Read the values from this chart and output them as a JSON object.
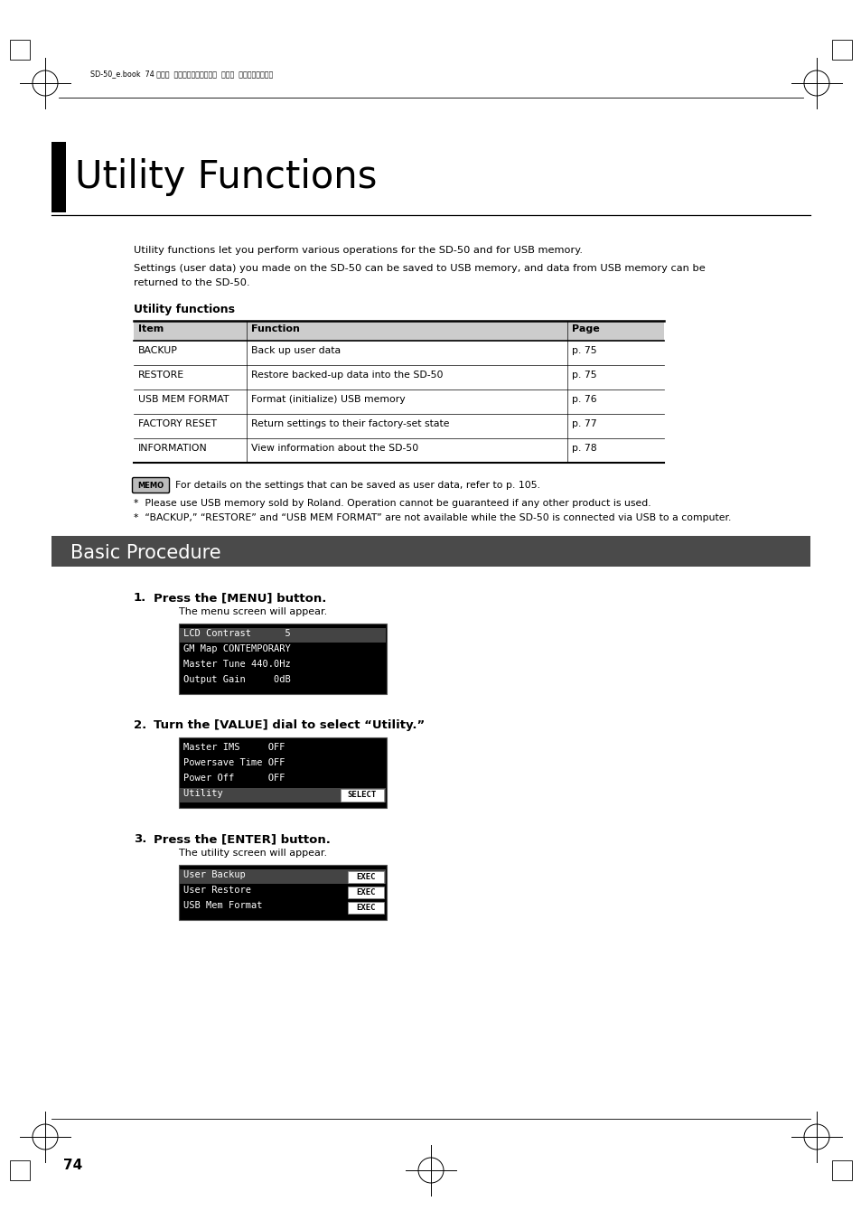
{
  "page_bg": "#ffffff",
  "header_text": "SD-50_e.book  74 ページ  ２０１０年１月２５日  月曜日  午前１０時５２分",
  "chapter_title": "Utility Functions",
  "intro_line1": "Utility functions let you perform various operations for the SD-50 and for USB memory.",
  "intro_line2": "Settings (user data) you made on the SD-50 can be saved to USB memory, and data from USB memory can be",
  "intro_line3": "returned to the SD-50.",
  "utility_functions_heading": "Utility functions",
  "table_header": [
    "Item",
    "Function",
    "Page"
  ],
  "table_rows": [
    [
      "BACKUP",
      "Back up user data",
      "p. 75"
    ],
    [
      "RESTORE",
      "Restore backed-up data into the SD-50",
      "p. 75"
    ],
    [
      "USB MEM FORMAT",
      "Format (initialize) USB memory",
      "p. 76"
    ],
    [
      "FACTORY RESET",
      "Return settings to their factory-set state",
      "p. 77"
    ],
    [
      "INFORMATION",
      "View information about the SD-50",
      "p. 78"
    ]
  ],
  "table_header_bg": "#cccccc",
  "memo_text": "For details on the settings that can be saved as user data, refer to p. 105.",
  "note1": "*  Please use USB memory sold by Roland. Operation cannot be guaranteed if any other product is used.",
  "note2": "*  “BACKUP,” “RESTORE” and “USB MEM FORMAT” are not available while the SD-50 is connected via USB to a computer.",
  "basic_procedure_title": "Basic Procedure",
  "basic_procedure_bg": "#4a4a4a",
  "basic_procedure_fg": "#ffffff",
  "step1_num": "1.",
  "step1_bold": "Press the [MENU] button.",
  "step1_desc": "The menu screen will appear.",
  "screen1_lines": [
    "LCD Contrast      5",
    "GM Map CONTEMPORARY",
    "Master Tune 440.0Hz",
    "Output Gain     0dB"
  ],
  "screen1_highlight": 0,
  "step2_num": "2.",
  "step2_bold": "Turn the [VALUE] dial to select “Utility.”",
  "screen2_lines": [
    "Master IMS     OFF",
    "Powersave Time OFF",
    "Power Off      OFF",
    "Utility        "
  ],
  "screen2_highlight": 3,
  "step3_num": "3.",
  "step3_bold": "Press the [ENTER] button.",
  "step3_desc": "The utility screen will appear.",
  "screen3_lines": [
    "User Backup   ",
    "User Restore  ",
    "USB Mem Format"
  ],
  "screen3_highlight": 0,
  "page_number": "74",
  "screen_bg": "#000000",
  "screen_fg": "#ffffff",
  "screen_select_bg": "#555555"
}
